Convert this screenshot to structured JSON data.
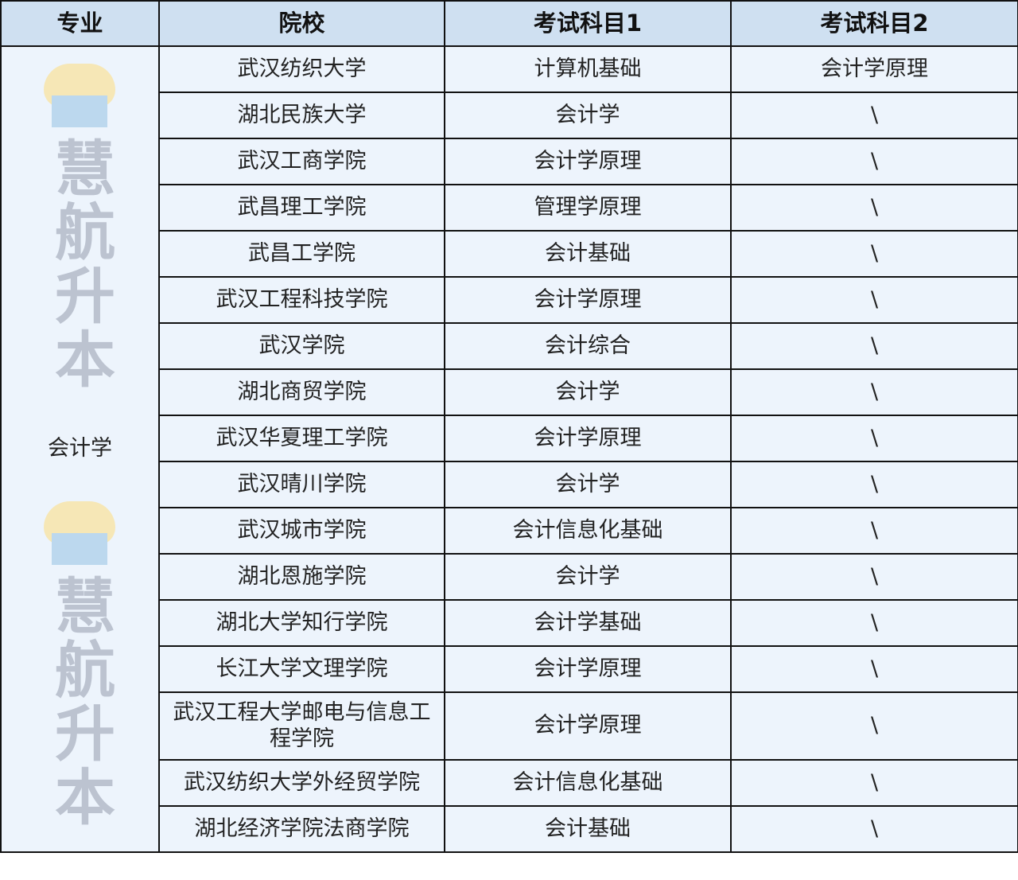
{
  "headers": [
    "专业",
    "院校",
    "考试科目1",
    "考试科目2"
  ],
  "major": "会计学",
  "rows": [
    [
      "武汉纺织大学",
      "计算机基础",
      "会计学原理"
    ],
    [
      "湖北民族大学",
      "会计学",
      "\\"
    ],
    [
      "武汉工商学院",
      "会计学原理",
      "\\"
    ],
    [
      "武昌理工学院",
      "管理学原理",
      "\\"
    ],
    [
      "武昌工学院",
      "会计基础",
      "\\"
    ],
    [
      "武汉工程科技学院",
      "会计学原理",
      "\\"
    ],
    [
      "武汉学院",
      "会计综合",
      "\\"
    ],
    [
      "湖北商贸学院",
      "会计学",
      "\\"
    ],
    [
      "武汉华夏理工学院",
      "会计学原理",
      "\\"
    ],
    [
      "武汉晴川学院",
      "会计学",
      "\\"
    ],
    [
      "武汉城市学院",
      "会计信息化基础",
      "\\"
    ],
    [
      "湖北恩施学院",
      "会计学",
      "\\"
    ],
    [
      "湖北大学知行学院",
      "会计学基础",
      "\\"
    ],
    [
      "长江大学文理学院",
      "会计学原理",
      "\\"
    ],
    [
      "武汉工程大学邮电与信息工程学院",
      "会计学原理",
      "\\"
    ],
    [
      "武汉纺织大学外经贸学院",
      "会计信息化基础",
      "\\"
    ],
    [
      "湖北经济学院法商学院",
      "会计基础",
      "\\"
    ]
  ],
  "watermark": "慧航升本",
  "colors": {
    "header_bg": "#cfe0f1",
    "cell_bg": "#edf4fc",
    "border": "#111111"
  }
}
